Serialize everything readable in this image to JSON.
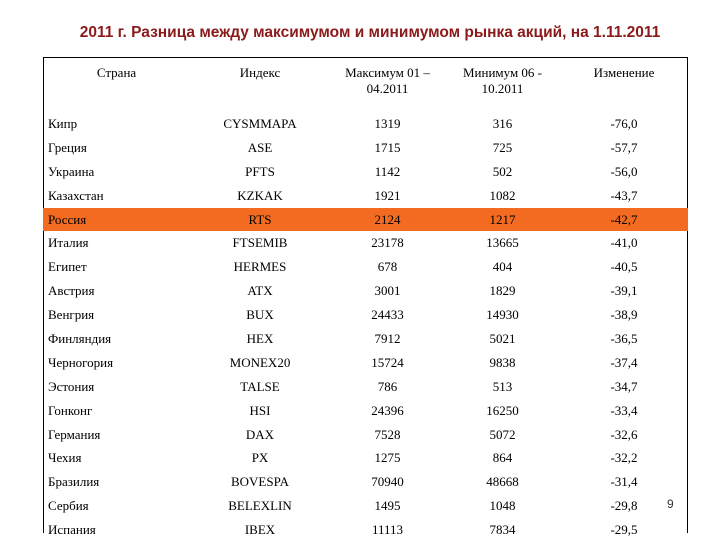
{
  "header": {
    "title": "2011 г. Разница между максимумом и минимумом рынка акций, на 1.11.2011"
  },
  "table": {
    "columns": [
      "Страна",
      "Индекс",
      "Максимум 01 – 04.2011",
      "Минимум 06 - 10.2011",
      "Изменение"
    ],
    "rows": [
      [
        "Кипр",
        "CYSMMAPA",
        "1319",
        "316",
        "-76,0"
      ],
      [
        "Греция",
        "ASE",
        "1715",
        "725",
        "-57,7"
      ],
      [
        "Украина",
        "PFTS",
        "1142",
        "502",
        "-56,0"
      ],
      [
        "Казахстан",
        "KZKAK",
        "1921",
        "1082",
        "-43,7"
      ],
      [
        "Россия",
        "RTS",
        "2124",
        "1217",
        "-42,7"
      ],
      [
        "Италия",
        "FTSEMIB",
        "23178",
        "13665",
        "-41,0"
      ],
      [
        "Египет",
        "HERMES",
        "678",
        "404",
        "-40,5"
      ],
      [
        "Австрия",
        "ATX",
        "3001",
        "1829",
        "-39,1"
      ],
      [
        "Венгрия",
        "BUX",
        "24433",
        "14930",
        "-38,9"
      ],
      [
        "Финляндия",
        "HEX",
        "7912",
        "5021",
        "-36,5"
      ],
      [
        "Черногория",
        "MONEX20",
        "15724",
        "9838",
        "-37,4"
      ],
      [
        "Эстония",
        "TALSE",
        "786",
        "513",
        "-34,7"
      ],
      [
        "Гонконг",
        "HSI",
        "24396",
        "16250",
        "-33,4"
      ],
      [
        "Германия",
        "DAX",
        "7528",
        "5072",
        "-32,6"
      ],
      [
        "Чехия",
        "PX",
        "1275",
        "864",
        "-32,2"
      ],
      [
        "Бразилия",
        "BOVESPA",
        "70940",
        "48668",
        "-31,4"
      ],
      [
        "Сербия",
        "BELEXLIN",
        "1495",
        "1048",
        "-29,8"
      ],
      [
        "Испания",
        "IBEX",
        "11113",
        "7834",
        "-29,5"
      ]
    ]
  },
  "page_number": "9"
}
